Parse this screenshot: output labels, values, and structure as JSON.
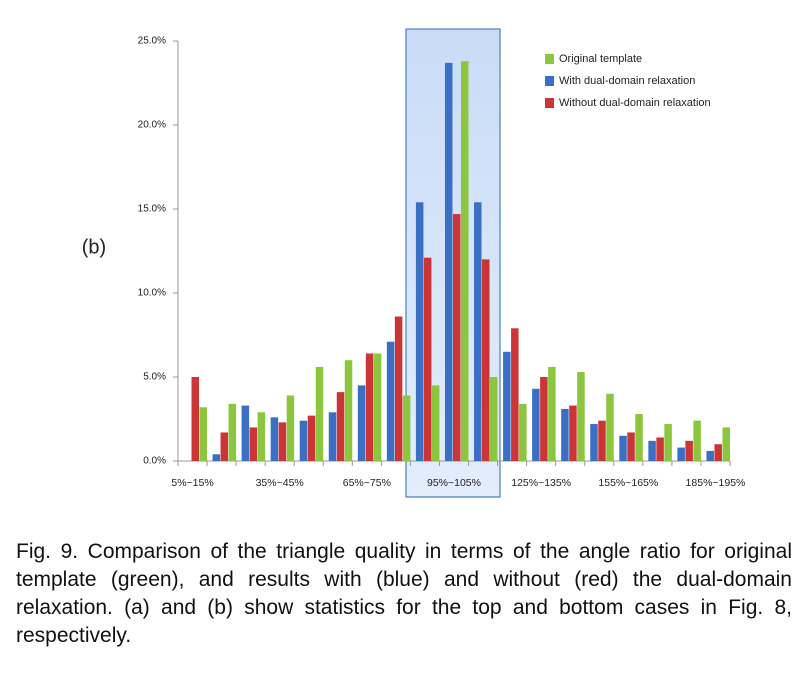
{
  "chart_data": {
    "type": "bar",
    "panel_label": "(b)",
    "categories": [
      "5%~15%",
      null,
      null,
      "35%~45%",
      null,
      null,
      "65%~75%",
      null,
      null,
      "95%~105%",
      null,
      null,
      "125%~135%",
      null,
      null,
      "155%~165%",
      null,
      null,
      "185%~195%"
    ],
    "series": [
      {
        "name": "Original template",
        "color": "#8cc63e",
        "values": [
          3.2,
          3.4,
          2.9,
          3.9,
          5.6,
          6.0,
          6.4,
          3.9,
          4.5,
          23.8,
          5.0,
          3.4,
          5.6,
          5.3,
          4.0,
          2.8,
          2.2,
          2.4,
          2.0
        ]
      },
      {
        "name": "With dual-domain relaxation",
        "color": "#3b6fc3",
        "values": [
          0,
          0.4,
          3.3,
          2.6,
          2.4,
          2.9,
          4.5,
          7.1,
          15.4,
          23.7,
          15.4,
          6.5,
          4.3,
          3.1,
          2.2,
          1.5,
          1.2,
          0.8,
          0.6
        ]
      },
      {
        "name": "Without dual-domain relaxation",
        "color": "#cc3535",
        "values": [
          5.0,
          1.7,
          2.0,
          2.3,
          2.7,
          4.1,
          6.4,
          8.6,
          12.1,
          14.7,
          12.0,
          7.9,
          5.0,
          3.3,
          2.4,
          1.7,
          1.4,
          1.2,
          1.0
        ]
      }
    ],
    "bar_order": [
      1,
      2,
      0
    ],
    "ylim": [
      0,
      25
    ],
    "yticks": [
      {
        "value": 0,
        "label": "0.0%"
      },
      {
        "value": 5,
        "label": "5.0%"
      },
      {
        "value": 10,
        "label": "10.0%"
      },
      {
        "value": 15,
        "label": "15.0%"
      },
      {
        "value": 20,
        "label": "20.0%"
      },
      {
        "value": 25,
        "label": "25.0%"
      }
    ],
    "grid": false,
    "legend": "top-right"
  },
  "caption": "Fig. 9. Comparison of the triangle quality in terms of the angle ratio for original template (green), and results with (blue) and without (red) the dual-domain relaxation. (a) and (b) show statistics for the top and bottom cases in Fig. 8, respectively."
}
